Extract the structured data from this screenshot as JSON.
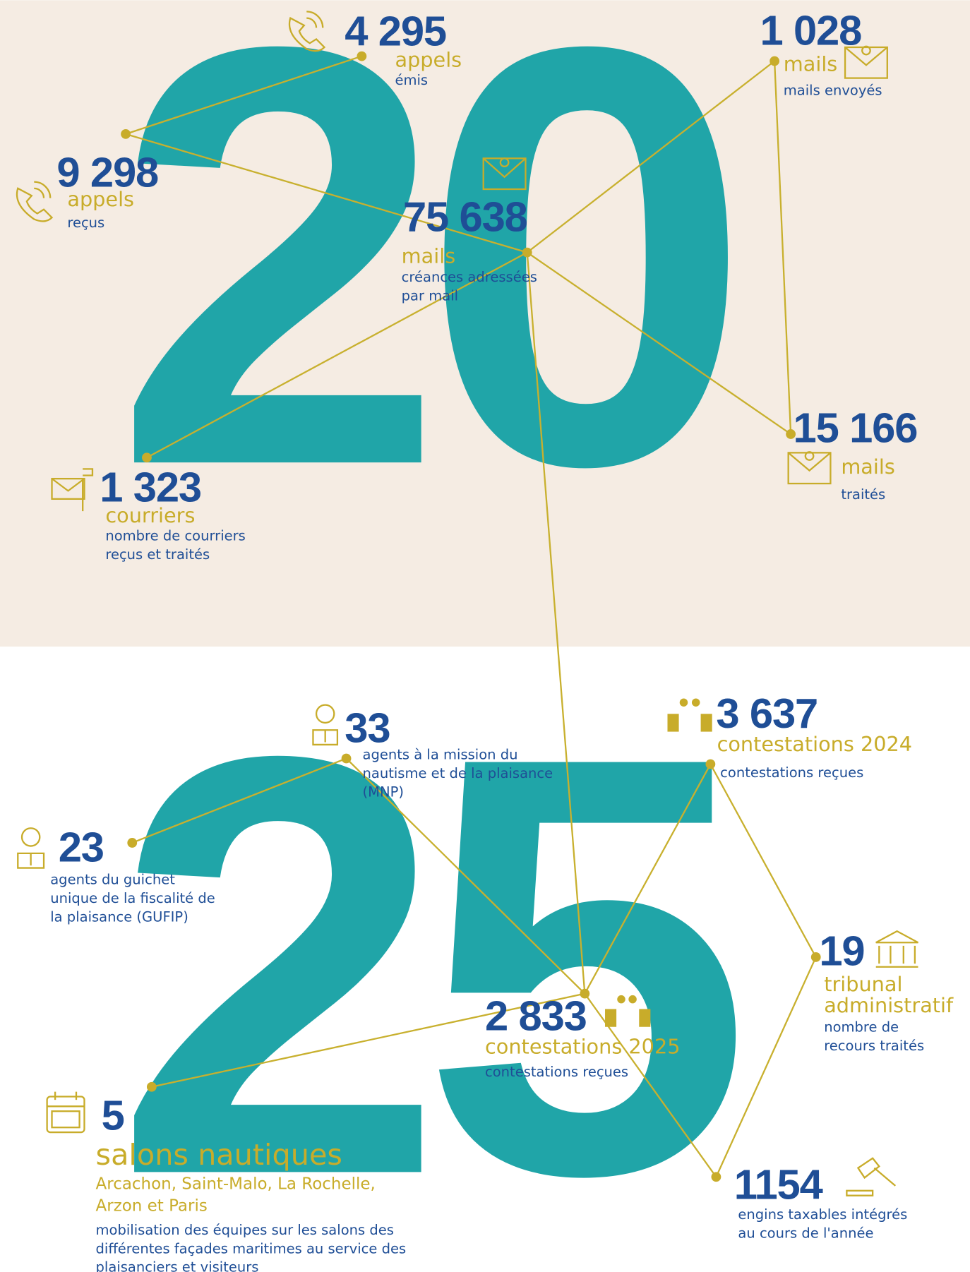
{
  "background_digits": [
    "20",
    "25"
  ],
  "stats": [
    {
      "number": "4 295",
      "label": [
        "appels"
      ],
      "description": [
        "émis"
      ]
    },
    {
      "number": "9 298",
      "label": [
        "appels"
      ],
      "description": [
        "reçus"
      ]
    },
    {
      "number": "75 638",
      "label": [
        "mails"
      ],
      "description": [
        "créances adressées",
        "par mail"
      ]
    },
    {
      "number": "1 028",
      "label": [
        "mails"
      ],
      "description": [
        "mails envoyés"
      ]
    },
    {
      "number": "15 166",
      "label": [
        "mails"
      ],
      "description": [
        "traités"
      ]
    },
    {
      "number": "1 323",
      "label": [
        "courriers"
      ],
      "description": [
        "nombre de courriers",
        "reçus et traités"
      ]
    },
    {
      "number": "33",
      "label": [],
      "description": [
        "agents à la mission du",
        "nautisme et de la plaisance",
        "(MNP)"
      ]
    },
    {
      "number": "23",
      "label": [],
      "description": [
        "agents du guichet",
        "unique de la fiscalité de",
        "la plaisance (GUFIP)"
      ]
    },
    {
      "number": "3 637",
      "label": [
        "contestations 2024"
      ],
      "description": [
        "contestations reçues"
      ]
    },
    {
      "number": "19",
      "label": [
        "tribunal",
        "administratif"
      ],
      "description": [
        "nombre de",
        "recours traités"
      ]
    },
    {
      "number": "2 833",
      "label": [
        "contestations 2025"
      ],
      "description": [
        "contestations reçues"
      ]
    },
    {
      "number": "5",
      "label": [
        "salons nautiques"
      ],
      "sublabel": [
        "Arcachon, Saint-Malo, La Rochelle,",
        "Arzon et Paris"
      ],
      "description": [
        "mobilisation des équipes sur les salons des",
        "différentes façades maritimes au service des",
        "plaisanciers et visiteurs"
      ]
    },
    {
      "number": "1154",
      "label": [],
      "description": [
        "engins taxables intégrés",
        "au cours de l'année"
      ]
    }
  ]
}
